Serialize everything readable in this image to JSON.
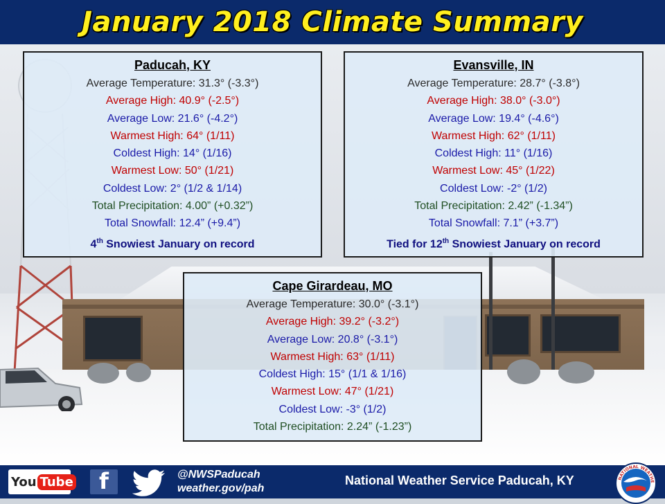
{
  "header": {
    "title": "January 2018 Climate Summary"
  },
  "stations": {
    "paducah": {
      "name": "Paducah, KY",
      "avg_temp": "Average Temperature: 31.3° (-3.3°)",
      "avg_high": "Average High: 40.9° (-2.5°)",
      "avg_low": "Average Low: 21.6° (-4.2°)",
      "warmest_high": "Warmest High: 64° (1/11)",
      "coldest_high": "Coldest High: 14° (1/16)",
      "warmest_low": "Warmest Low: 50° (1/21)",
      "coldest_low": "Coldest Low: 2° (1/2 & 1/14)",
      "total_precip": "Total Precipitation: 4.00” (+0.32”)",
      "total_snow": "Total Snowfall: 12.4” (+9.4”)",
      "record_prefix": "4",
      "record_sup": "th",
      "record_rest": " Snowiest January on record"
    },
    "evansville": {
      "name": "Evansville, IN",
      "avg_temp": "Average Temperature: 28.7° (-3.8°)",
      "avg_high": "Average High: 38.0° (-3.0°)",
      "avg_low": "Average Low: 19.4° (-4.6°)",
      "warmest_high": "Warmest High: 62° (1/11)",
      "coldest_high": "Coldest High: 11° (1/16)",
      "warmest_low": "Warmest Low: 45° (1/22)",
      "coldest_low": "Coldest Low: -2° (1/2)",
      "total_precip": "Total Precipitation: 2.42” (-1.34”)",
      "total_snow": "Total Snowfall: 7.1” (+3.7”)",
      "record_prefix": "Tied for 12",
      "record_sup": "th",
      "record_rest": " Snowiest January on record"
    },
    "cape": {
      "name": "Cape Girardeau, MO",
      "avg_temp": "Average Temperature: 30.0° (-3.1°)",
      "avg_high": "Average High: 39.2° (-3.2°)",
      "avg_low": "Average Low: 20.8° (-3.1°)",
      "warmest_high": "Warmest High: 63° (1/11)",
      "coldest_high": "Coldest High: 15° (1/1 & 1/16)",
      "warmest_low": "Warmest Low: 47° (1/21)",
      "coldest_low": "Coldest Low: -3° (1/2)",
      "total_precip": "Total Precipitation: 2.24” (-1.23”)"
    }
  },
  "footer": {
    "youtube_you": "You",
    "youtube_tube": "Tube",
    "facebook_glyph": "f",
    "handle": "@NWSPaducah",
    "website": "weather.gov/pah",
    "office_name": "National Weather Service Paducah, KY",
    "logo_text": "NATIONAL WEATHER SERVICE"
  },
  "colors": {
    "header_bg": "#0b2a6b",
    "title_yellow": "#ffef1f",
    "red": "#c00000",
    "blue": "#1a1aa8",
    "green": "#1f4e22"
  },
  "icons": [
    "youtube-icon",
    "facebook-icon",
    "twitter-icon",
    "nws-logo-icon"
  ]
}
